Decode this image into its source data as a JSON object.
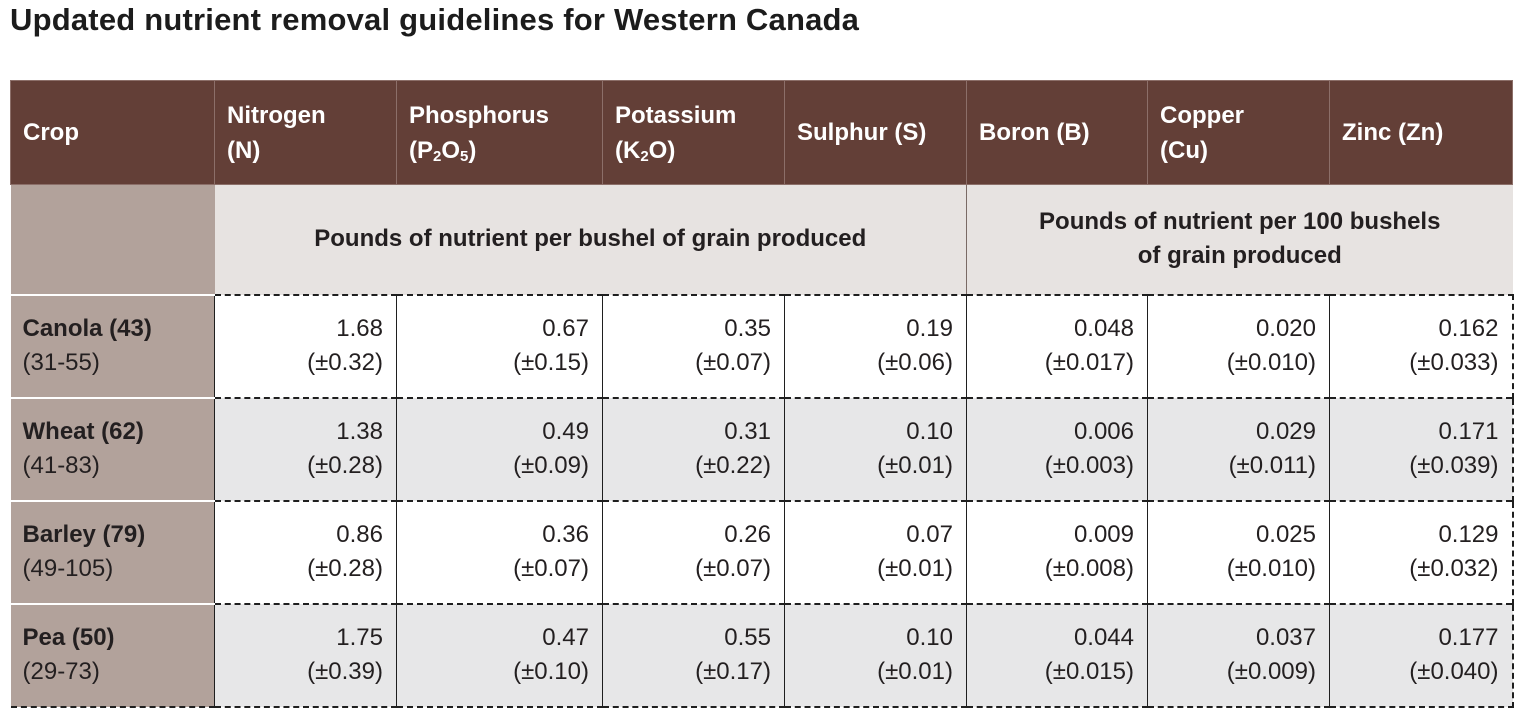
{
  "title": "Updated nutrient removal guidelines for Western Canada",
  "headers": {
    "crop": "Crop",
    "nitrogen": {
      "line1": "Nitrogen",
      "line2": "(N)"
    },
    "phosphorus": {
      "line1": "Phosphorus",
      "line2_open": "(P",
      "sub1": "2",
      "mid": "O",
      "sub2": "5",
      "close": ")"
    },
    "potassium": {
      "line1": "Potassium",
      "line2_open": "(K",
      "sub1": "2",
      "close": "O)"
    },
    "sulphur": "Sulphur (S)",
    "boron": "Boron (B)",
    "copper": {
      "line1": "Copper",
      "line2": "(Cu)"
    },
    "zinc": "Zinc (Zn)"
  },
  "units": {
    "per_bushel": "Pounds of nutrient per bushel of grain produced",
    "per_100_bushels_line1": "Pounds of nutrient per 100 bushels",
    "per_100_bushels_line2": "of grain produced"
  },
  "rows": [
    {
      "crop": "Canola (43)",
      "range": "(31-55)",
      "cells": [
        {
          "v": "1.68",
          "e": "(±0.32)"
        },
        {
          "v": "0.67",
          "e": "(±0.15)"
        },
        {
          "v": "0.35",
          "e": "(±0.07)"
        },
        {
          "v": "0.19",
          "e": "(±0.06)"
        },
        {
          "v": "0.048",
          "e": "(±0.017)"
        },
        {
          "v": "0.020",
          "e": "(±0.010)"
        },
        {
          "v": "0.162",
          "e": "(±0.033)"
        }
      ]
    },
    {
      "crop": "Wheat (62)",
      "range": "(41-83)",
      "cells": [
        {
          "v": "1.38",
          "e": "(±0.28)"
        },
        {
          "v": "0.49",
          "e": "(±0.09)"
        },
        {
          "v": "0.31",
          "e": "(±0.22)"
        },
        {
          "v": "0.10",
          "e": "(±0.01)"
        },
        {
          "v": "0.006",
          "e": "(±0.003)"
        },
        {
          "v": "0.029",
          "e": "(±0.011)"
        },
        {
          "v": "0.171",
          "e": "(±0.039)"
        }
      ]
    },
    {
      "crop": "Barley (79)",
      "range": "(49-105)",
      "cells": [
        {
          "v": "0.86",
          "e": "(±0.28)"
        },
        {
          "v": "0.36",
          "e": "(±0.07)"
        },
        {
          "v": "0.26",
          "e": "(±0.07)"
        },
        {
          "v": "0.07",
          "e": "(±0.01)"
        },
        {
          "v": "0.009",
          "e": "(±0.008)"
        },
        {
          "v": "0.025",
          "e": "(±0.010)"
        },
        {
          "v": "0.129",
          "e": "(±0.032)"
        }
      ]
    },
    {
      "crop": "Pea (50)",
      "range": "(29-73)",
      "cells": [
        {
          "v": "1.75",
          "e": "(±0.39)"
        },
        {
          "v": "0.47",
          "e": "(±0.10)"
        },
        {
          "v": "0.55",
          "e": "(±0.17)"
        },
        {
          "v": "0.10",
          "e": "(±0.01)"
        },
        {
          "v": "0.044",
          "e": "(±0.015)"
        },
        {
          "v": "0.037",
          "e": "(±0.009)"
        },
        {
          "v": "0.177",
          "e": "(±0.040)"
        }
      ]
    }
  ],
  "colors": {
    "header_bg": "#633f37",
    "crop_column_bg": "#b2a29b",
    "units_row_bg": "#e7e3e1",
    "even_row_bg": "#e7e7e8"
  }
}
